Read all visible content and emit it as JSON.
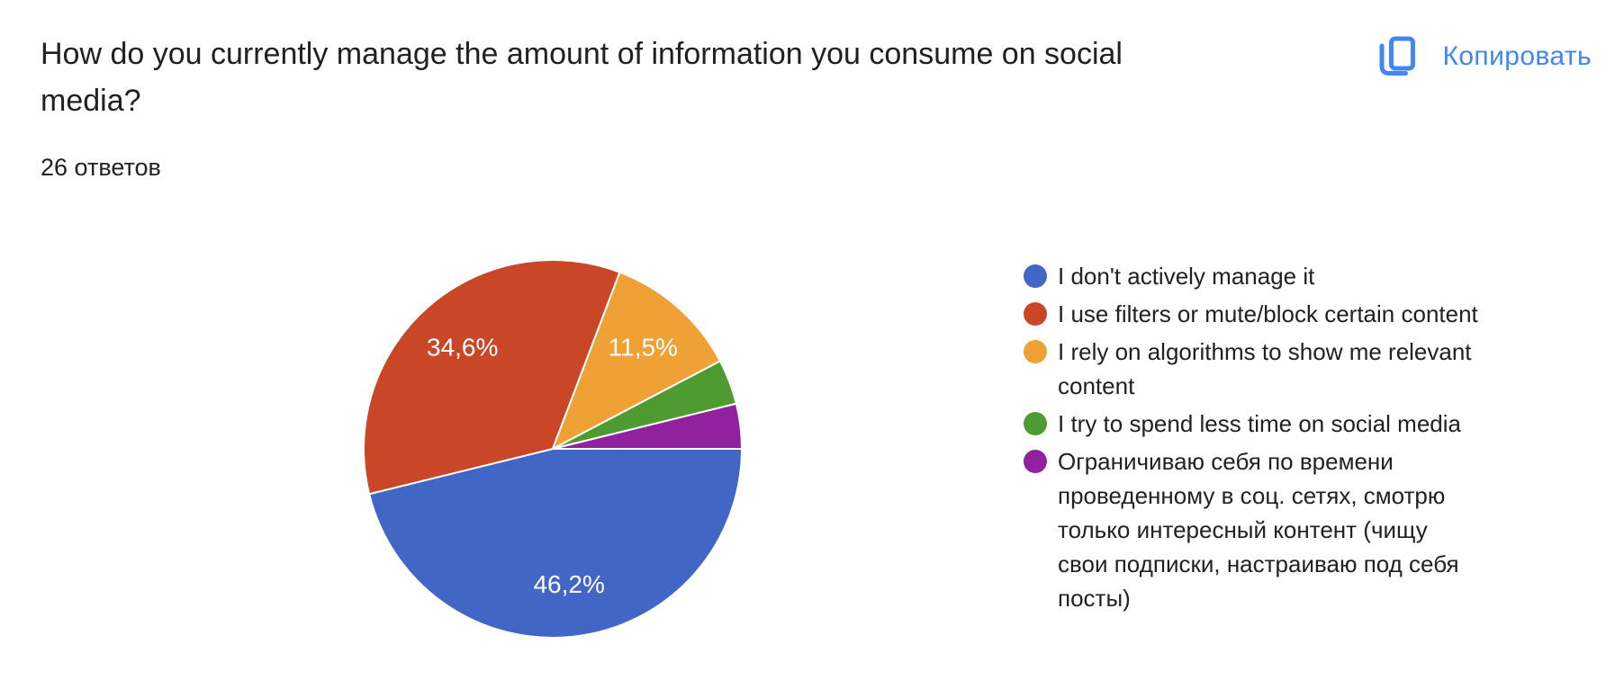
{
  "header": {
    "title": "How do you currently manage the amount of information you consume on social media?",
    "responses_count_label": "26 ответов"
  },
  "toolbar": {
    "copy_button_label": "Копировать",
    "copy_icon": "copy-icon",
    "accent_color": "#4285f4"
  },
  "chart_data": {
    "type": "pie",
    "title": "How do you currently manage the amount of information you consume on social media?",
    "responses_label": "26 ответов",
    "total_responses": 26,
    "start_angle_deg": 90,
    "direction": "clockwise",
    "legend_position": "right",
    "percent_label_color": "#ffffff",
    "percent_label_font_size": 28,
    "slices": [
      {
        "label": "I don't actively manage it",
        "legend_label": "I don't actively manage it",
        "value": 12,
        "percent": 46.2,
        "percent_label": "46,2%",
        "show_percent_label": true,
        "color": "#4166c5"
      },
      {
        "label": "I use filters or mute/block certain content",
        "legend_label": "I use filters or mute/block certain content",
        "value": 9,
        "percent": 34.6,
        "percent_label": "34,6%",
        "show_percent_label": true,
        "color": "#c94727"
      },
      {
        "label": "I rely on algorithms to show me relevant content",
        "legend_label": "I rely on algorithms to show me relevant\ncontent",
        "value": 3,
        "percent": 11.5,
        "percent_label": "11,5%",
        "show_percent_label": true,
        "color": "#f0a136"
      },
      {
        "label": "I try to spend less time on social media",
        "legend_label": "I try to spend less time on social media",
        "value": 1,
        "percent": 3.8,
        "percent_label": "",
        "show_percent_label": false,
        "color": "#4e9b31"
      },
      {
        "label": "Ограничиваю себя по времени проведенному в соц. сетях, смотрю только интересный контент (чищу свои подписки, настраиваю под себя посты)",
        "legend_label": "Ограничиваю себя по времени\nпроведенному в соц. сетях, смотрю\nтолько интересный контент (чищу\nсвои подписки, настраиваю под себя\nпосты)",
        "value": 1,
        "percent": 3.8,
        "percent_label": "",
        "show_percent_label": false,
        "color": "#91219e"
      }
    ]
  }
}
